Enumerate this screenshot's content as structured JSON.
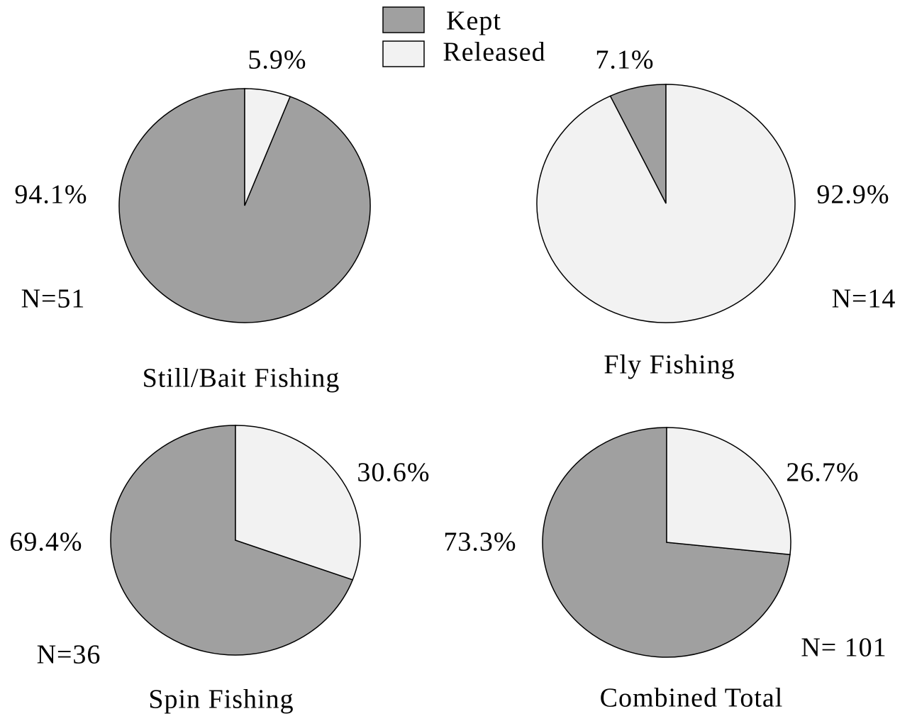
{
  "chart_data": [
    {
      "type": "pie",
      "title": "Still/Bait Fishing",
      "categories": [
        "Kept",
        "Released"
      ],
      "values": [
        94.1,
        5.9
      ],
      "value_labels": [
        "94.1%",
        "5.9%"
      ],
      "colors": [
        "#a0a0a0",
        "#f2f2f2"
      ],
      "annotation": "N=51"
    },
    {
      "type": "pie",
      "title": "Fly Fishing",
      "categories": [
        "Kept",
        "Released"
      ],
      "values": [
        7.1,
        92.9
      ],
      "value_labels": [
        "7.1%",
        "92.9%"
      ],
      "colors": [
        "#a0a0a0",
        "#f2f2f2"
      ],
      "annotation": "N=14"
    },
    {
      "type": "pie",
      "title": "Spin Fishing",
      "categories": [
        "Kept",
        "Released"
      ],
      "values": [
        69.4,
        30.6
      ],
      "value_labels": [
        "69.4%",
        "30.6%"
      ],
      "colors": [
        "#a0a0a0",
        "#f2f2f2"
      ],
      "annotation": "N=36"
    },
    {
      "type": "pie",
      "title": "Combined Total",
      "categories": [
        "Kept",
        "Released"
      ],
      "values": [
        73.3,
        26.7
      ],
      "value_labels": [
        "73.3%",
        "26.7%"
      ],
      "colors": [
        "#a0a0a0",
        "#f2f2f2"
      ],
      "annotation": "N= 101"
    }
  ]
}
